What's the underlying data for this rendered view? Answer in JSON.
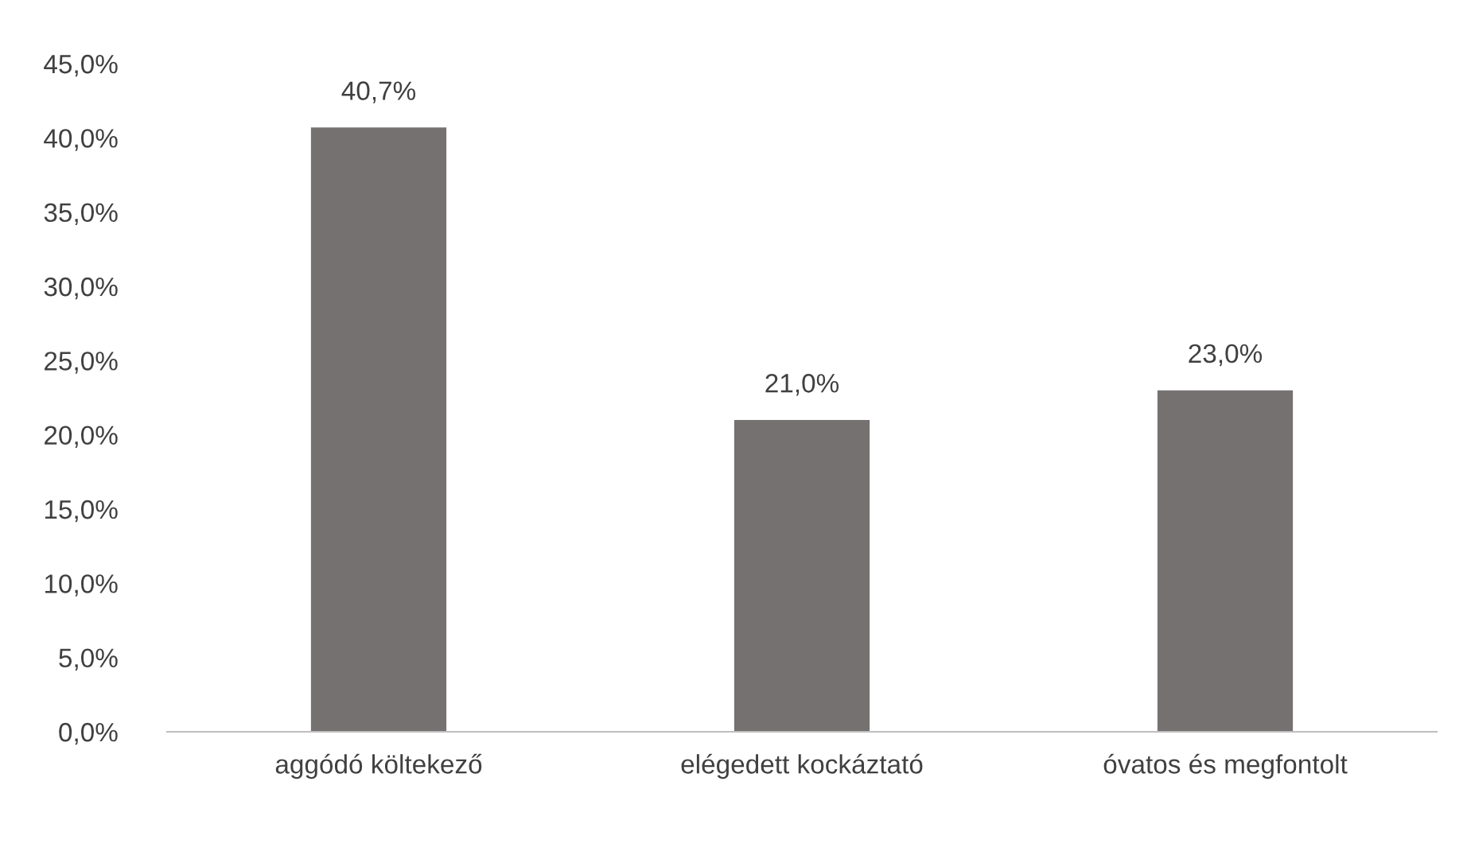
{
  "chart_data": {
    "type": "bar",
    "categories": [
      "aggódó költekező",
      "elégedett kockáztató",
      "óvatos és megfontolt"
    ],
    "values": [
      40.7,
      21.0,
      23.0
    ],
    "color": "#767171",
    "value_labels": [
      "40,7%",
      "21,0%",
      "23,0%"
    ],
    "ylim": [
      0,
      45
    ],
    "yticks": [
      {
        "value": 0,
        "label": "0,0%"
      },
      {
        "value": 5,
        "label": "5,0%"
      },
      {
        "value": 10,
        "label": "10,0%"
      },
      {
        "value": 15,
        "label": "15,0%"
      },
      {
        "value": 20,
        "label": "20,0%"
      },
      {
        "value": 25,
        "label": "25,0%"
      },
      {
        "value": 30,
        "label": "30,0%"
      },
      {
        "value": 35,
        "label": "35,0%"
      },
      {
        "value": 40,
        "label": "40,0%"
      },
      {
        "value": 45,
        "label": "45,0%"
      }
    ],
    "grid": false,
    "legend": false
  }
}
